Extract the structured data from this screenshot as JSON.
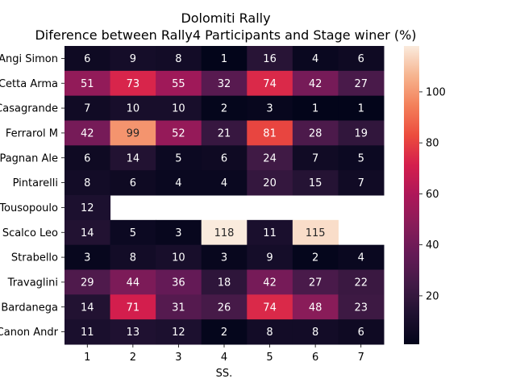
{
  "chart_data": {
    "type": "heatmap",
    "title": "Dolomiti Rally",
    "subtitle": "Diference between Rally4 Participants and Stage winer (%)",
    "xlabel": "SS.",
    "ylabel": "",
    "x_categories": [
      "1",
      "2",
      "3",
      "4",
      "5",
      "6",
      "7"
    ],
    "y_categories": [
      "Angi Simon",
      "Cetta Arma",
      "Casagrande",
      "Ferrarol M",
      "Pagnan Ale",
      "Pintarelli",
      "Tousopoulo",
      "Scalco Leo",
      "Strabello ",
      "Travaglini",
      "Bardanega ",
      "Canon Andr"
    ],
    "values": [
      [
        6,
        9,
        8,
        1,
        16,
        4,
        6
      ],
      [
        51,
        73,
        55,
        32,
        74,
        42,
        27
      ],
      [
        7,
        10,
        10,
        2,
        3,
        1,
        1
      ],
      [
        42,
        99,
        52,
        21,
        81,
        28,
        19
      ],
      [
        6,
        14,
        5,
        6,
        24,
        7,
        5
      ],
      [
        8,
        6,
        4,
        4,
        20,
        15,
        7
      ],
      [
        12,
        null,
        null,
        null,
        null,
        null,
        null
      ],
      [
        14,
        5,
        3,
        118,
        11,
        115,
        null
      ],
      [
        3,
        8,
        10,
        3,
        9,
        2,
        4
      ],
      [
        29,
        44,
        36,
        18,
        42,
        27,
        22
      ],
      [
        14,
        71,
        31,
        26,
        74,
        48,
        23
      ],
      [
        11,
        13,
        12,
        2,
        8,
        8,
        6
      ]
    ],
    "colorbar": {
      "colormap": "rocket",
      "vmin": 1,
      "vmax": 118,
      "ticks": [
        20,
        40,
        60,
        80,
        100
      ]
    },
    "grid": false
  }
}
